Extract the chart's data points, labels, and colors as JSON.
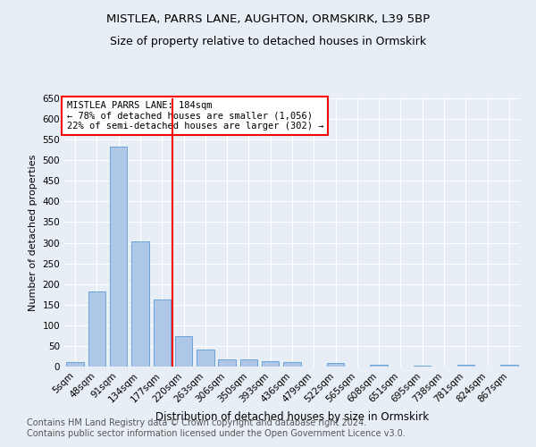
{
  "title": "MISTLEA, PARRS LANE, AUGHTON, ORMSKIRK, L39 5BP",
  "subtitle": "Size of property relative to detached houses in Ormskirk",
  "xlabel": "Distribution of detached houses by size in Ormskirk",
  "ylabel": "Number of detached properties",
  "bar_labels": [
    "5sqm",
    "48sqm",
    "91sqm",
    "134sqm",
    "177sqm",
    "220sqm",
    "263sqm",
    "306sqm",
    "350sqm",
    "393sqm",
    "436sqm",
    "479sqm",
    "522sqm",
    "565sqm",
    "608sqm",
    "651sqm",
    "695sqm",
    "738sqm",
    "781sqm",
    "824sqm",
    "867sqm"
  ],
  "bar_values": [
    10,
    183,
    534,
    304,
    162,
    73,
    41,
    17,
    18,
    12,
    11,
    0,
    9,
    0,
    5,
    0,
    3,
    0,
    5,
    0,
    4
  ],
  "bar_color": "#aec6e8",
  "bar_edgecolor": "#5b9bd5",
  "vline_x": 4.5,
  "vline_color": "red",
  "annotation_text": "MISTLEA PARRS LANE: 184sqm\n← 78% of detached houses are smaller (1,056)\n22% of semi-detached houses are larger (302) →",
  "annotation_box_edgecolor": "red",
  "ylim": [
    0,
    650
  ],
  "yticks": [
    0,
    50,
    100,
    150,
    200,
    250,
    300,
    350,
    400,
    450,
    500,
    550,
    600,
    650
  ],
  "background_color": "#e8eef5",
  "footer_text": "Contains HM Land Registry data © Crown copyright and database right 2024.\nContains public sector information licensed under the Open Government Licence v3.0.",
  "title_fontsize": 9.5,
  "subtitle_fontsize": 9,
  "footer_fontsize": 7,
  "ylabel_fontsize": 8,
  "xlabel_fontsize": 8.5,
  "tick_fontsize": 7.5,
  "annot_fontsize": 7.5
}
